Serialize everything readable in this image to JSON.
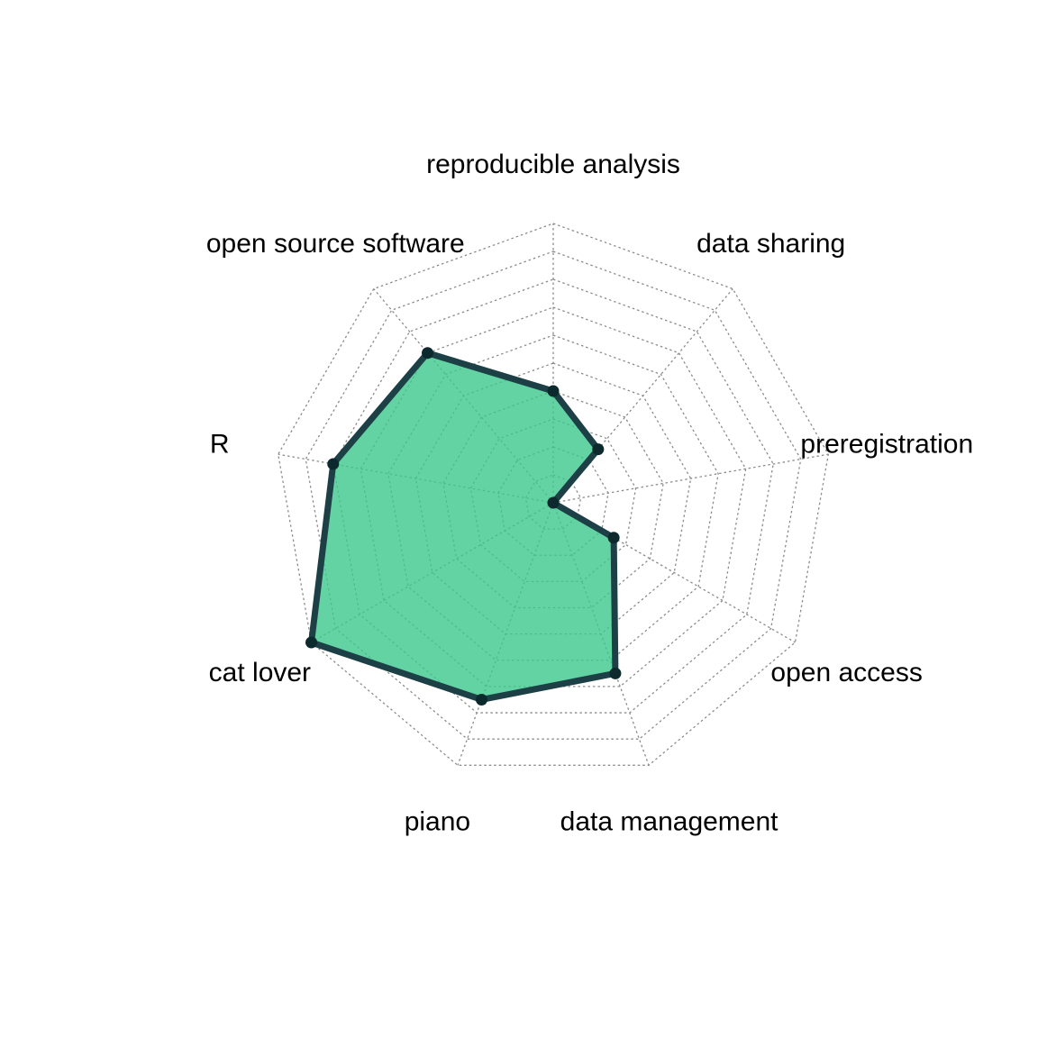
{
  "chart_data": {
    "type": "radar",
    "title": "",
    "axes": [
      "reproducible analysis",
      "data sharing",
      "preregistration",
      "open access",
      "data management",
      "piano",
      "cat lover",
      "R",
      "open source software"
    ],
    "values": [
      4,
      2.5,
      0,
      2.5,
      6.5,
      7.5,
      10,
      8,
      7
    ],
    "range": [
      0,
      10
    ],
    "grid_levels": 10,
    "grid_style": "dotted",
    "fill_color": "#3cc88c",
    "fill_opacity": 0.8,
    "line_color": "#1c4046",
    "point_color": "#0c2a2e"
  }
}
